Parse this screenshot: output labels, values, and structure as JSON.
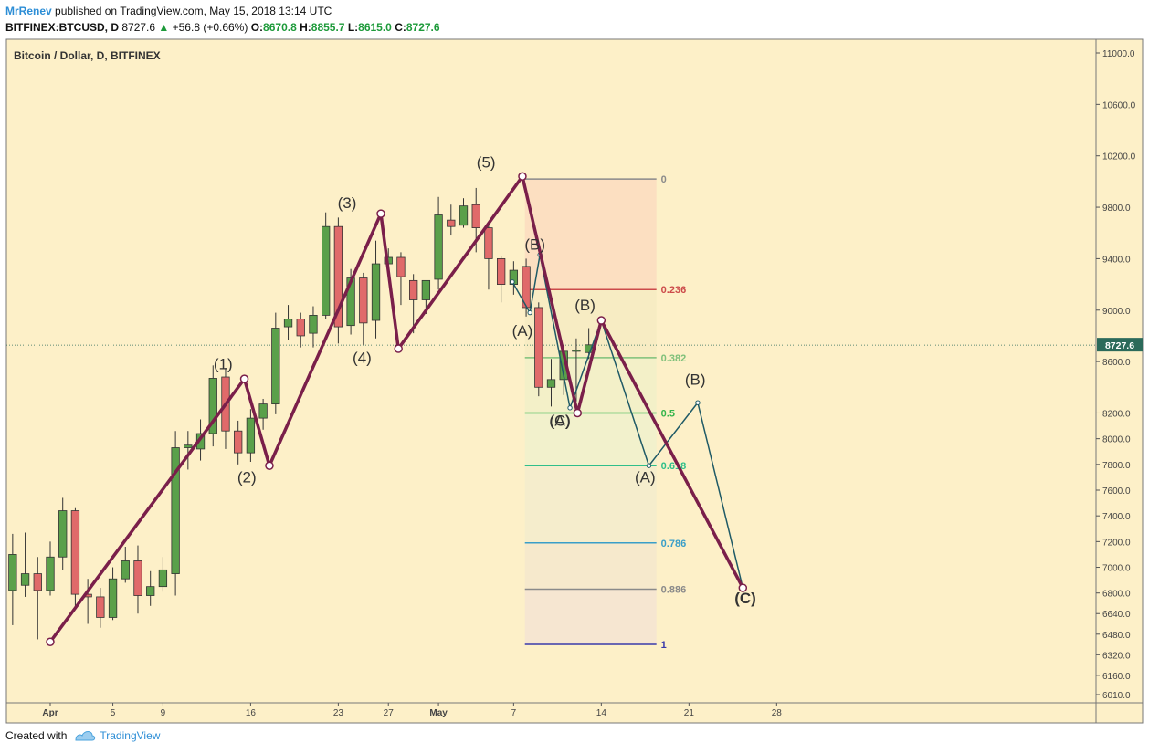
{
  "header": {
    "author": "MrRenev",
    "published_text": "published on TradingView.com, May 15, 2018 13:14 UTC",
    "symbol": "BITFINEX:BTCUSD, D",
    "last": "8727.6",
    "change": "+56.8 (+0.66%)",
    "o_label": "O:",
    "o_value": "8670.8",
    "h_label": "H:",
    "h_value": "8855.7",
    "l_label": "L:",
    "l_value": "8615.0",
    "c_label": "C:",
    "c_value": "8727.6"
  },
  "footer": {
    "created_with": "Created with",
    "brand": "TradingView"
  },
  "colors": {
    "background": "#fdf0c8",
    "up": "#5aa04a",
    "down": "#e06a6a",
    "wave": "#7a1f4a",
    "forecast": "#1f5a66",
    "price_tag": "#2b6a5a"
  },
  "chart_data": {
    "type": "candlestick",
    "title": "Bitcoin / Dollar, D, BITFINEX",
    "x_unit": "days since 2018-04-01",
    "ylim": [
      6000,
      11100
    ],
    "xlim": [
      -0.5,
      86.5
    ],
    "y_ticks": [
      "11000.0",
      "10600.0",
      "10200.0",
      "9800.0",
      "9400.0",
      "9000.0",
      "8600.0",
      "8200.0",
      "8000.0",
      "7800.0",
      "7600.0",
      "7400.0",
      "7200.0",
      "7000.0",
      "6800.0",
      "6640.0",
      "6480.0",
      "6320.0",
      "6160.0",
      "6010.0"
    ],
    "x_ticks": [
      {
        "label": "Apr",
        "x": 3
      },
      {
        "label": "5",
        "x": 8
      },
      {
        "label": "9",
        "x": 12
      },
      {
        "label": "16",
        "x": 19
      },
      {
        "label": "23",
        "x": 26
      },
      {
        "label": "27",
        "x": 30
      },
      {
        "label": "May",
        "x": 34
      },
      {
        "label": "7",
        "x": 40
      },
      {
        "label": "14",
        "x": 47
      },
      {
        "label": "21",
        "x": 54
      },
      {
        "label": "28",
        "x": 61
      }
    ],
    "last_price": "8727.6",
    "candles": [
      {
        "o": 6820,
        "h": 7260,
        "l": 6550,
        "c": 7100
      },
      {
        "o": 6860,
        "h": 7270,
        "l": 6770,
        "c": 6950
      },
      {
        "o": 6950,
        "h": 7080,
        "l": 6440,
        "c": 6820
      },
      {
        "o": 6820,
        "h": 7200,
        "l": 6780,
        "c": 7080
      },
      {
        "o": 7080,
        "h": 7540,
        "l": 6980,
        "c": 7440
      },
      {
        "o": 7440,
        "h": 7460,
        "l": 6680,
        "c": 6790
      },
      {
        "o": 6790,
        "h": 6910,
        "l": 6560,
        "c": 6770
      },
      {
        "o": 6770,
        "h": 6840,
        "l": 6530,
        "c": 6610
      },
      {
        "o": 6610,
        "h": 7000,
        "l": 6590,
        "c": 6910
      },
      {
        "o": 6910,
        "h": 7160,
        "l": 6880,
        "c": 7050
      },
      {
        "o": 7050,
        "h": 7170,
        "l": 6640,
        "c": 6780
      },
      {
        "o": 6780,
        "h": 6970,
        "l": 6700,
        "c": 6850
      },
      {
        "o": 6850,
        "h": 7080,
        "l": 6810,
        "c": 6980
      },
      {
        "o": 6950,
        "h": 8060,
        "l": 6780,
        "c": 7930
      },
      {
        "o": 7930,
        "h": 8060,
        "l": 7760,
        "c": 7950
      },
      {
        "o": 7920,
        "h": 8150,
        "l": 7830,
        "c": 8040
      },
      {
        "o": 8040,
        "h": 8570,
        "l": 7940,
        "c": 8470
      },
      {
        "o": 8480,
        "h": 8550,
        "l": 7920,
        "c": 8060
      },
      {
        "o": 8060,
        "h": 8140,
        "l": 7800,
        "c": 7890
      },
      {
        "o": 7890,
        "h": 8230,
        "l": 7820,
        "c": 8160
      },
      {
        "o": 8160,
        "h": 8310,
        "l": 8070,
        "c": 8270
      },
      {
        "o": 8270,
        "h": 8980,
        "l": 8190,
        "c": 8860
      },
      {
        "o": 8870,
        "h": 9040,
        "l": 8770,
        "c": 8930
      },
      {
        "o": 8930,
        "h": 8980,
        "l": 8710,
        "c": 8800
      },
      {
        "o": 8820,
        "h": 9030,
        "l": 8710,
        "c": 8960
      },
      {
        "o": 8960,
        "h": 9760,
        "l": 8930,
        "c": 9650
      },
      {
        "o": 9650,
        "h": 9720,
        "l": 8740,
        "c": 8870
      },
      {
        "o": 8880,
        "h": 9320,
        "l": 8810,
        "c": 9250
      },
      {
        "o": 9250,
        "h": 9290,
        "l": 8730,
        "c": 8900
      },
      {
        "o": 8920,
        "h": 9540,
        "l": 8780,
        "c": 9360
      },
      {
        "o": 9360,
        "h": 9480,
        "l": 9310,
        "c": 9410
      },
      {
        "o": 9410,
        "h": 9450,
        "l": 9040,
        "c": 9260
      },
      {
        "o": 9230,
        "h": 9280,
        "l": 8820,
        "c": 9080
      },
      {
        "o": 9080,
        "h": 9220,
        "l": 8970,
        "c": 9230
      },
      {
        "o": 9240,
        "h": 9880,
        "l": 9160,
        "c": 9740
      },
      {
        "o": 9700,
        "h": 9820,
        "l": 9580,
        "c": 9650
      },
      {
        "o": 9660,
        "h": 9870,
        "l": 9640,
        "c": 9810
      },
      {
        "o": 9820,
        "h": 9950,
        "l": 9450,
        "c": 9640
      },
      {
        "o": 9640,
        "h": 9690,
        "l": 9160,
        "c": 9400
      },
      {
        "o": 9400,
        "h": 9420,
        "l": 9060,
        "c": 9200
      },
      {
        "o": 9200,
        "h": 9380,
        "l": 9120,
        "c": 9310
      },
      {
        "o": 9340,
        "h": 9400,
        "l": 8950,
        "c": 9020
      },
      {
        "o": 9020,
        "h": 9060,
        "l": 8330,
        "c": 8400
      },
      {
        "o": 8400,
        "h": 8620,
        "l": 8250,
        "c": 8460
      },
      {
        "o": 8460,
        "h": 8730,
        "l": 8340,
        "c": 8680
      },
      {
        "o": 8680,
        "h": 8780,
        "l": 8290,
        "c": 8690
      },
      {
        "o": 8670,
        "h": 8860,
        "l": 8620,
        "c": 8730
      }
    ],
    "fib_levels": [
      {
        "label": "0",
        "value": 10020,
        "color": "#8a8a8a"
      },
      {
        "label": "0.236",
        "value": 9160,
        "color": "#cc4a4a"
      },
      {
        "label": "0.382",
        "value": 8630,
        "color": "#7fc07a"
      },
      {
        "label": "0.5",
        "value": 8200,
        "color": "#33b44a"
      },
      {
        "label": "0.618",
        "value": 7790,
        "color": "#2fbf8a"
      },
      {
        "label": "0.786",
        "value": 7190,
        "color": "#3a9ec8"
      },
      {
        "label": "0.886",
        "value": 6830,
        "color": "#8a8a8a"
      },
      {
        "label": "1",
        "value": 6400,
        "color": "#3a3aaa"
      }
    ],
    "fib_box": {
      "x0": 40.9,
      "x1": 51.4
    },
    "wave_path": [
      {
        "x": 3,
        "y": 6420,
        "label": ""
      },
      {
        "x": 18.5,
        "y": 8465,
        "label": "(1)"
      },
      {
        "x": 20.5,
        "y": 7790,
        "label": "(2)"
      },
      {
        "x": 29.4,
        "y": 9750,
        "label": "(3)"
      },
      {
        "x": 30.8,
        "y": 8700,
        "label": "(4)"
      },
      {
        "x": 40.7,
        "y": 10040,
        "label": "(5)"
      },
      {
        "x": 45.1,
        "y": 8200,
        "label": "(C)"
      },
      {
        "x": 47.0,
        "y": 8920,
        "label": "(B)"
      },
      {
        "x": 58.3,
        "y": 6840,
        "label": "(C)"
      }
    ],
    "forecast_path": [
      {
        "x": 39.9,
        "y": 9220
      },
      {
        "x": 41.3,
        "y": 8980
      },
      {
        "x": 42.1,
        "y": 9430
      },
      {
        "x": 44.5,
        "y": 8240
      },
      {
        "x": 47.0,
        "y": 8920
      },
      {
        "x": 50.8,
        "y": 7790
      },
      {
        "x": 54.7,
        "y": 8280
      },
      {
        "x": 58.3,
        "y": 6840
      }
    ],
    "labels": [
      {
        "text": "(1)",
        "x": 16.8,
        "y": 8540
      },
      {
        "text": "(2)",
        "x": 18.7,
        "y": 7660
      },
      {
        "text": "(3)",
        "x": 26.7,
        "y": 9795
      },
      {
        "text": "(4)",
        "x": 27.9,
        "y": 8590
      },
      {
        "text": "(5)",
        "x": 37.8,
        "y": 10110
      },
      {
        "text": "(B)",
        "x": 41.7,
        "y": 9470
      },
      {
        "text": "(A)",
        "x": 40.7,
        "y": 8800
      },
      {
        "text": "(C)",
        "x": 43.7,
        "y": 8100
      },
      {
        "text": "(A)",
        "x": 43.7,
        "y": 8100
      },
      {
        "text": "(B)",
        "x": 45.7,
        "y": 9000
      },
      {
        "text": "(B)",
        "x": 54.5,
        "y": 8420
      },
      {
        "text": "(A)",
        "x": 50.5,
        "y": 7660
      },
      {
        "text": "(C)",
        "x": 58.5,
        "y": 6720
      }
    ]
  }
}
